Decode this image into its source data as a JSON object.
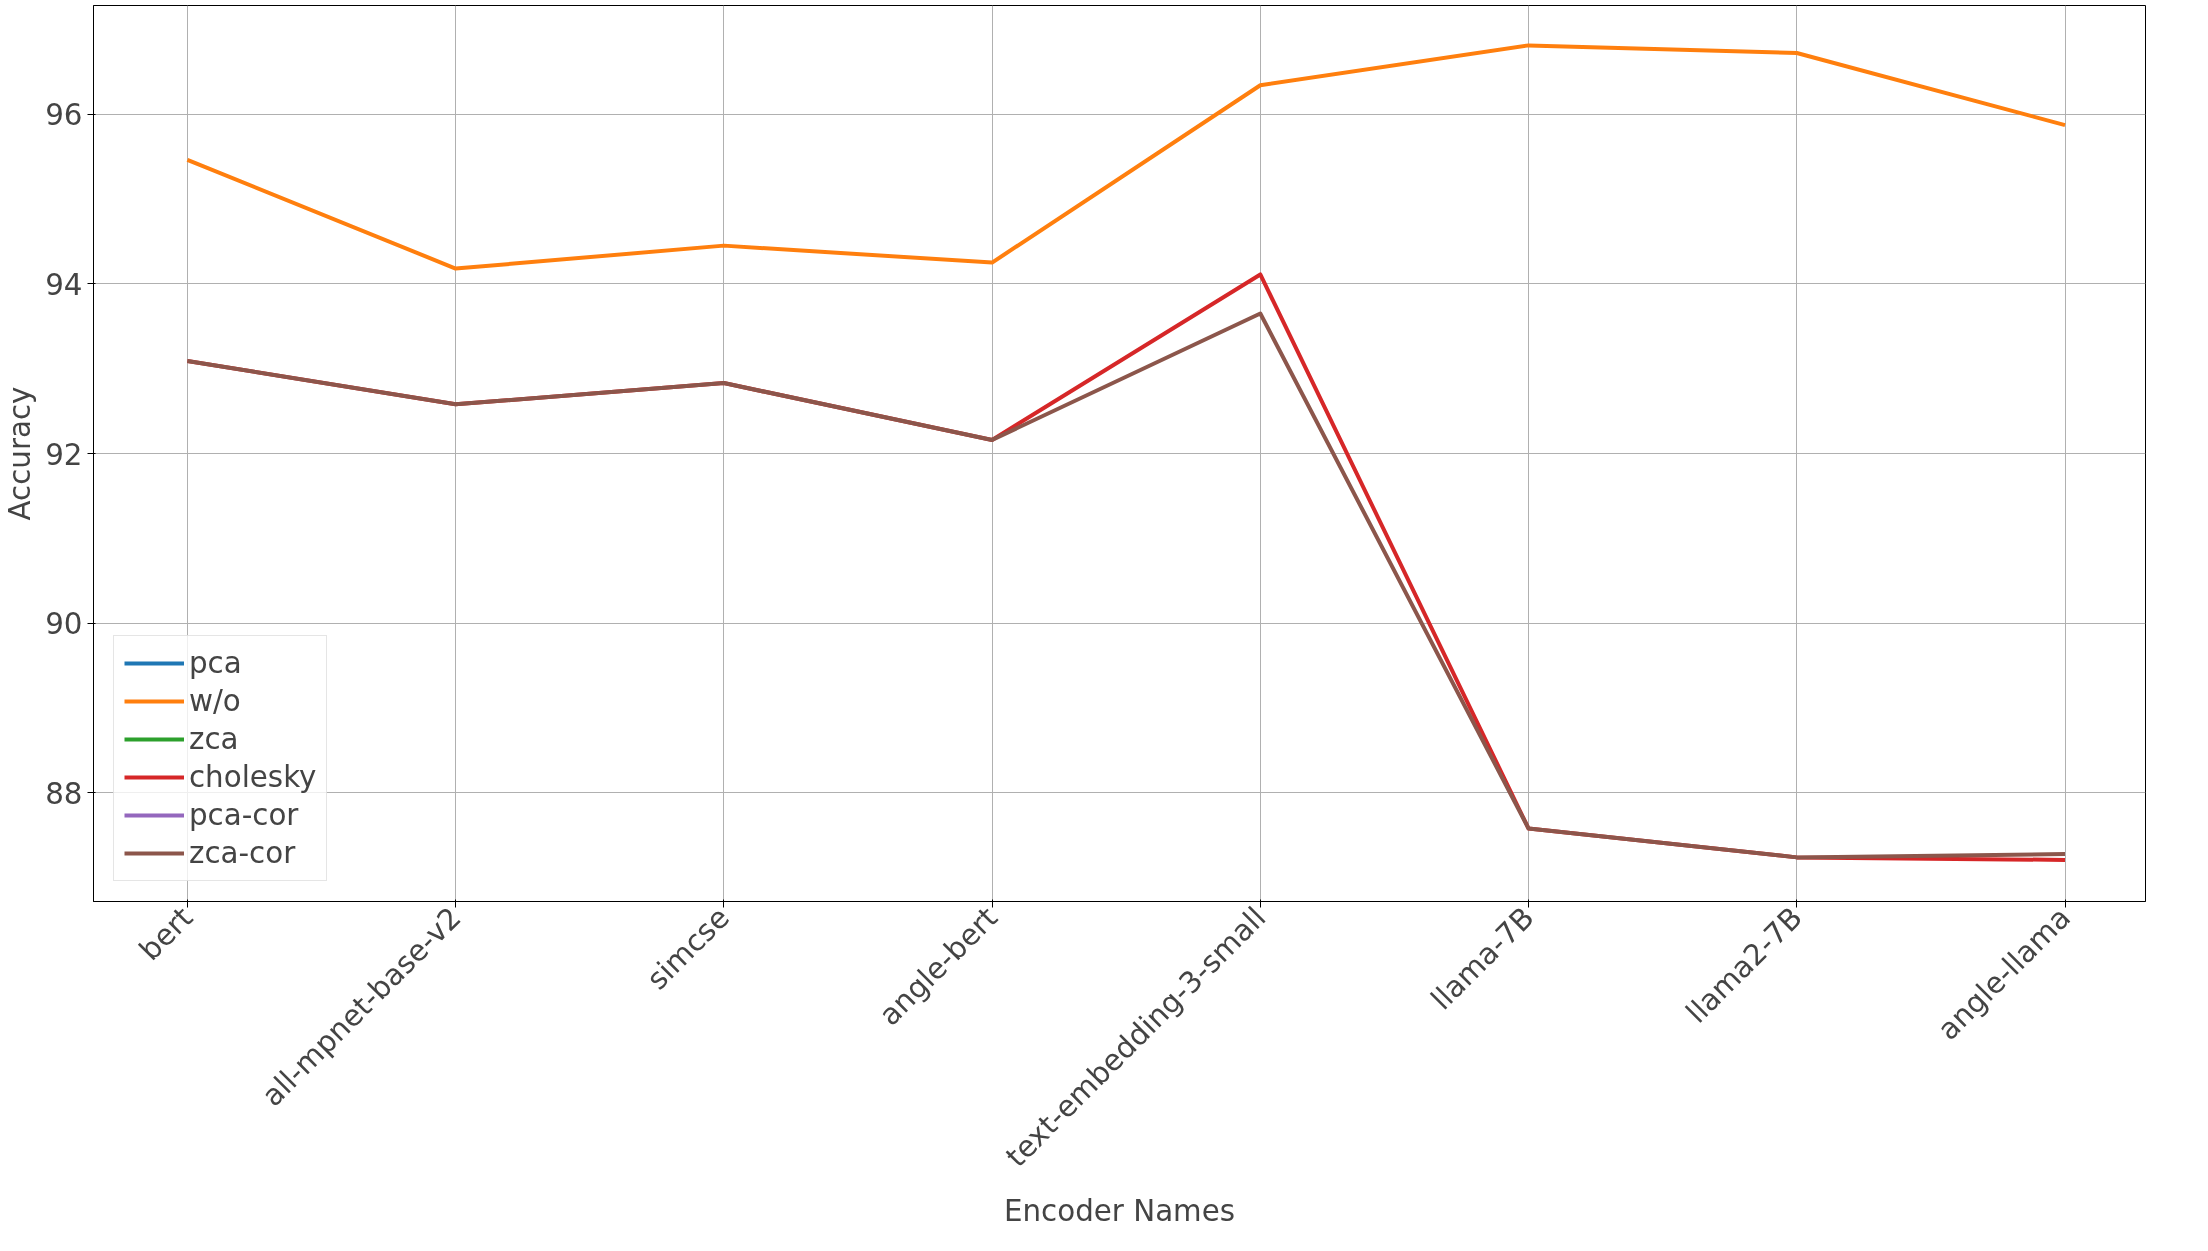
{
  "chart_data": {
    "type": "line",
    "xlabel": "Encoder Names",
    "ylabel": "Accuracy",
    "categories": [
      "bert",
      "all-mpnet-base-v2",
      "simcse",
      "angle-bert",
      "text-embedding-3-small",
      "llama-7B",
      "llama2-7B",
      "angle-llama"
    ],
    "ylim": [
      86.72,
      97.28
    ],
    "yticks": [
      88,
      90,
      92,
      94,
      96
    ],
    "grid": true,
    "legend": "bottom left",
    "marker": "none",
    "line_style": "solid",
    "series": [
      {
        "name": "pca",
        "color": "#1f77b4",
        "values": [
          null,
          null,
          null,
          null,
          null,
          null,
          null,
          null
        ]
      },
      {
        "name": "w/o",
        "color": "#ff7f0e",
        "values": [
          95.46,
          94.18,
          94.45,
          94.25,
          96.34,
          96.81,
          96.72,
          95.87
        ]
      },
      {
        "name": "zca",
        "color": "#2ca02c",
        "values": [
          null,
          null,
          null,
          null,
          null,
          null,
          null,
          null
        ]
      },
      {
        "name": "cholesky",
        "color": "#d62728",
        "values": [
          93.09,
          92.58,
          92.83,
          92.16,
          94.11,
          87.58,
          87.24,
          87.21
        ]
      },
      {
        "name": "pca-cor",
        "color": "#9467bd",
        "values": [
          null,
          null,
          null,
          null,
          null,
          null,
          null,
          null
        ]
      },
      {
        "name": "zca-cor",
        "color": "#8c564b",
        "values": [
          93.09,
          92.58,
          92.83,
          92.16,
          93.65,
          87.58,
          87.24,
          87.28
        ]
      }
    ]
  }
}
